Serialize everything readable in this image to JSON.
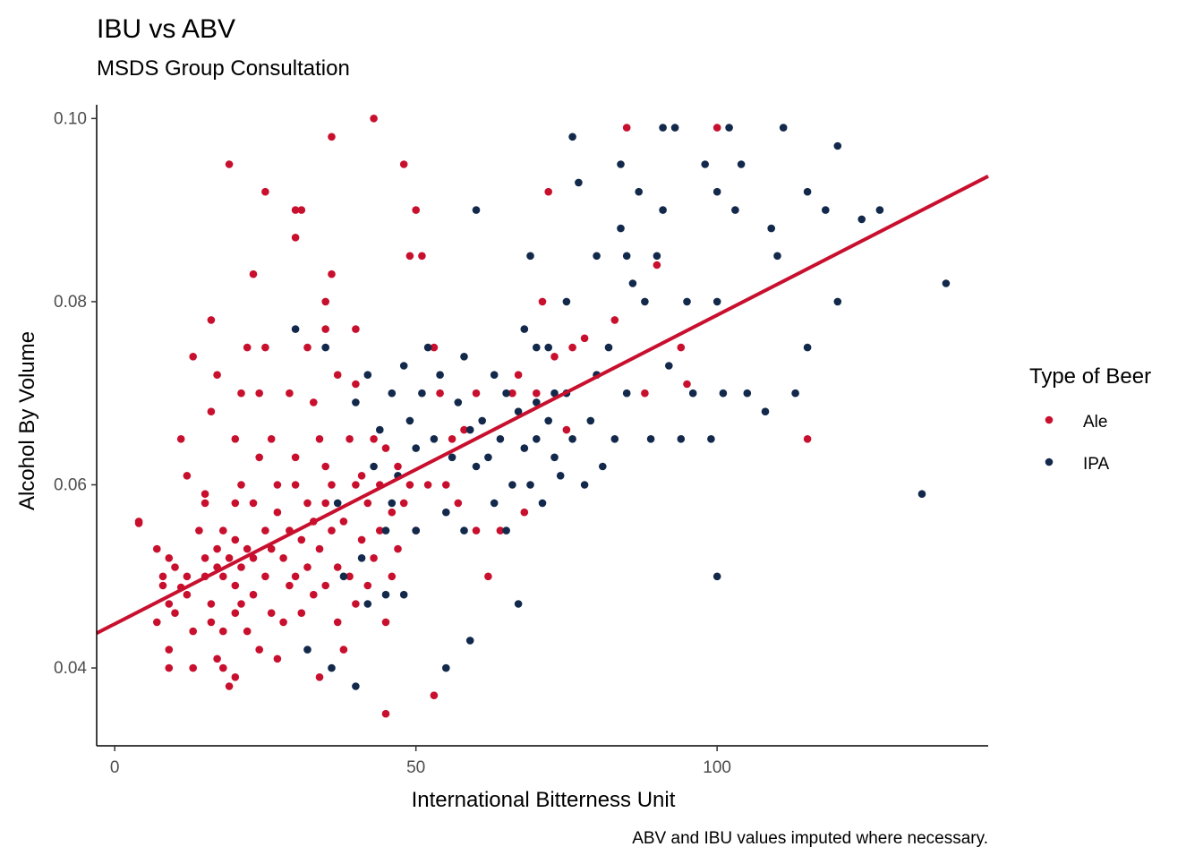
{
  "chart_data": {
    "type": "scatter",
    "title": "IBU vs ABV",
    "subtitle": "MSDS Group Consultation",
    "caption": "ABV and IBU values imputed where necessary.",
    "xlabel": "International Bitterness Unit",
    "ylabel": "Alcohol By Volume",
    "xlim": [
      -3,
      145
    ],
    "ylim": [
      0.0315,
      0.1015
    ],
    "x_ticks": [
      0,
      50,
      100
    ],
    "x_tick_labels": [
      "0",
      "50",
      "100"
    ],
    "y_ticks": [
      0.04,
      0.06,
      0.08,
      0.1
    ],
    "y_tick_labels": [
      "0.04",
      "0.06",
      "0.08",
      "0.10"
    ],
    "grid": false,
    "legend": {
      "title": "Type of Beer",
      "position": "right",
      "entries": [
        "Ale",
        "IPA"
      ]
    },
    "colors": {
      "Ale": "#c8102e",
      "IPA": "#13294b",
      "trend": "#c8102e"
    },
    "trend_line": {
      "type": "linear",
      "x": [
        -3,
        145
      ],
      "y": [
        0.0438,
        0.0937
      ]
    },
    "series": [
      {
        "name": "Ale",
        "points": [
          [
            4,
            0.0558
          ],
          [
            4,
            0.056
          ],
          [
            7,
            0.053
          ],
          [
            7,
            0.045
          ],
          [
            8,
            0.05
          ],
          [
            8,
            0.049
          ],
          [
            9,
            0.052
          ],
          [
            9,
            0.047
          ],
          [
            9,
            0.04
          ],
          [
            9,
            0.042
          ],
          [
            10,
            0.046
          ],
          [
            10,
            0.051
          ],
          [
            11,
            0.0488
          ],
          [
            11,
            0.065
          ],
          [
            12,
            0.061
          ],
          [
            12,
            0.05
          ],
          [
            12,
            0.048
          ],
          [
            13,
            0.044
          ],
          [
            13,
            0.074
          ],
          [
            13,
            0.04
          ],
          [
            14,
            0.055
          ],
          [
            15,
            0.059
          ],
          [
            15,
            0.058
          ],
          [
            15,
            0.052
          ],
          [
            15,
            0.05
          ],
          [
            16,
            0.047
          ],
          [
            16,
            0.045
          ],
          [
            16,
            0.068
          ],
          [
            16,
            0.078
          ],
          [
            17,
            0.072
          ],
          [
            17,
            0.051
          ],
          [
            17,
            0.053
          ],
          [
            17,
            0.041
          ],
          [
            18,
            0.055
          ],
          [
            18,
            0.05
          ],
          [
            18,
            0.044
          ],
          [
            18,
            0.04
          ],
          [
            19,
            0.038
          ],
          [
            19,
            0.095
          ],
          [
            19,
            0.052
          ],
          [
            20,
            0.039
          ],
          [
            20,
            0.046
          ],
          [
            20,
            0.049
          ],
          [
            20,
            0.054
          ],
          [
            20,
            0.058
          ],
          [
            20,
            0.065
          ],
          [
            21,
            0.051
          ],
          [
            21,
            0.07
          ],
          [
            21,
            0.06
          ],
          [
            21,
            0.047
          ],
          [
            22,
            0.053
          ],
          [
            22,
            0.075
          ],
          [
            22,
            0.044
          ],
          [
            23,
            0.083
          ],
          [
            23,
            0.058
          ],
          [
            23,
            0.048
          ],
          [
            23,
            0.052
          ],
          [
            24,
            0.07
          ],
          [
            24,
            0.063
          ],
          [
            24,
            0.042
          ],
          [
            25,
            0.092
          ],
          [
            25,
            0.075
          ],
          [
            25,
            0.055
          ],
          [
            25,
            0.05
          ],
          [
            26,
            0.065
          ],
          [
            26,
            0.053
          ],
          [
            26,
            0.046
          ],
          [
            27,
            0.06
          ],
          [
            27,
            0.057
          ],
          [
            27,
            0.041
          ],
          [
            28,
            0.052
          ],
          [
            28,
            0.045
          ],
          [
            29,
            0.055
          ],
          [
            29,
            0.07
          ],
          [
            29,
            0.049
          ],
          [
            30,
            0.087
          ],
          [
            30,
            0.09
          ],
          [
            30,
            0.063
          ],
          [
            30,
            0.05
          ],
          [
            30,
            0.06
          ],
          [
            31,
            0.09
          ],
          [
            31,
            0.054
          ],
          [
            31,
            0.046
          ],
          [
            32,
            0.075
          ],
          [
            32,
            0.058
          ],
          [
            32,
            0.051
          ],
          [
            33,
            0.069
          ],
          [
            33,
            0.056
          ],
          [
            33,
            0.048
          ],
          [
            34,
            0.065
          ],
          [
            34,
            0.053
          ],
          [
            34,
            0.039
          ],
          [
            35,
            0.08
          ],
          [
            35,
            0.077
          ],
          [
            35,
            0.062
          ],
          [
            35,
            0.058
          ],
          [
            35,
            0.049
          ],
          [
            36,
            0.098
          ],
          [
            36,
            0.083
          ],
          [
            36,
            0.055
          ],
          [
            36,
            0.06
          ],
          [
            37,
            0.072
          ],
          [
            37,
            0.051
          ],
          [
            37,
            0.045
          ],
          [
            38,
            0.056
          ],
          [
            38,
            0.042
          ],
          [
            39,
            0.065
          ],
          [
            39,
            0.05
          ],
          [
            40,
            0.077
          ],
          [
            40,
            0.071
          ],
          [
            40,
            0.06
          ],
          [
            40,
            0.047
          ],
          [
            41,
            0.061
          ],
          [
            41,
            0.054
          ],
          [
            42,
            0.058
          ],
          [
            42,
            0.049
          ],
          [
            43,
            0.1
          ],
          [
            43,
            0.065
          ],
          [
            43,
            0.052
          ],
          [
            44,
            0.06
          ],
          [
            44,
            0.055
          ],
          [
            45,
            0.045
          ],
          [
            45,
            0.035
          ],
          [
            45,
            0.064
          ],
          [
            46,
            0.057
          ],
          [
            46,
            0.05
          ],
          [
            47,
            0.062
          ],
          [
            47,
            0.053
          ],
          [
            48,
            0.095
          ],
          [
            48,
            0.058
          ],
          [
            49,
            0.085
          ],
          [
            49,
            0.06
          ],
          [
            50,
            0.09
          ],
          [
            50,
            0.055
          ],
          [
            51,
            0.085
          ],
          [
            52,
            0.06
          ],
          [
            53,
            0.075
          ],
          [
            53,
            0.037
          ],
          [
            54,
            0.07
          ],
          [
            55,
            0.06
          ],
          [
            56,
            0.065
          ],
          [
            57,
            0.058
          ],
          [
            58,
            0.066
          ],
          [
            60,
            0.07
          ],
          [
            60,
            0.055
          ],
          [
            62,
            0.05
          ],
          [
            64,
            0.055
          ],
          [
            66,
            0.07
          ],
          [
            67,
            0.072
          ],
          [
            68,
            0.057
          ],
          [
            70,
            0.07
          ],
          [
            71,
            0.08
          ],
          [
            72,
            0.092
          ],
          [
            73,
            0.074
          ],
          [
            75,
            0.066
          ],
          [
            76,
            0.075
          ],
          [
            78,
            0.076
          ],
          [
            80,
            0.072
          ],
          [
            83,
            0.078
          ],
          [
            85,
            0.099
          ],
          [
            88,
            0.07
          ],
          [
            90,
            0.084
          ],
          [
            94,
            0.075
          ],
          [
            95,
            0.071
          ],
          [
            100,
            0.099
          ],
          [
            115,
            0.065
          ]
        ]
      },
      {
        "name": "IPA",
        "points": [
          [
            30,
            0.077
          ],
          [
            32,
            0.042
          ],
          [
            35,
            0.075
          ],
          [
            36,
            0.04
          ],
          [
            37,
            0.058
          ],
          [
            38,
            0.05
          ],
          [
            40,
            0.069
          ],
          [
            40,
            0.038
          ],
          [
            41,
            0.052
          ],
          [
            42,
            0.072
          ],
          [
            42,
            0.047
          ],
          [
            43,
            0.062
          ],
          [
            44,
            0.066
          ],
          [
            45,
            0.055
          ],
          [
            45,
            0.048
          ],
          [
            46,
            0.07
          ],
          [
            46,
            0.058
          ],
          [
            47,
            0.061
          ],
          [
            48,
            0.073
          ],
          [
            48,
            0.048
          ],
          [
            49,
            0.067
          ],
          [
            50,
            0.064
          ],
          [
            50,
            0.055
          ],
          [
            51,
            0.07
          ],
          [
            52,
            0.075
          ],
          [
            53,
            0.065
          ],
          [
            54,
            0.072
          ],
          [
            55,
            0.057
          ],
          [
            55,
            0.04
          ],
          [
            56,
            0.063
          ],
          [
            57,
            0.069
          ],
          [
            58,
            0.074
          ],
          [
            58,
            0.055
          ],
          [
            59,
            0.066
          ],
          [
            59,
            0.043
          ],
          [
            60,
            0.09
          ],
          [
            60,
            0.062
          ],
          [
            61,
            0.067
          ],
          [
            62,
            0.063
          ],
          [
            63,
            0.058
          ],
          [
            63,
            0.072
          ],
          [
            64,
            0.065
          ],
          [
            65,
            0.07
          ],
          [
            65,
            0.055
          ],
          [
            66,
            0.06
          ],
          [
            67,
            0.068
          ],
          [
            67,
            0.047
          ],
          [
            68,
            0.077
          ],
          [
            68,
            0.064
          ],
          [
            69,
            0.085
          ],
          [
            69,
            0.06
          ],
          [
            70,
            0.075
          ],
          [
            70,
            0.069
          ],
          [
            70,
            0.065
          ],
          [
            71,
            0.058
          ],
          [
            72,
            0.075
          ],
          [
            72,
            0.067
          ],
          [
            73,
            0.07
          ],
          [
            73,
            0.063
          ],
          [
            74,
            0.061
          ],
          [
            75,
            0.08
          ],
          [
            75,
            0.07
          ],
          [
            76,
            0.098
          ],
          [
            76,
            0.065
          ],
          [
            77,
            0.093
          ],
          [
            78,
            0.06
          ],
          [
            79,
            0.067
          ],
          [
            80,
            0.085
          ],
          [
            80,
            0.072
          ],
          [
            81,
            0.062
          ],
          [
            82,
            0.075
          ],
          [
            83,
            0.065
          ],
          [
            84,
            0.095
          ],
          [
            84,
            0.088
          ],
          [
            85,
            0.085
          ],
          [
            85,
            0.07
          ],
          [
            86,
            0.082
          ],
          [
            87,
            0.092
          ],
          [
            88,
            0.08
          ],
          [
            89,
            0.065
          ],
          [
            90,
            0.085
          ],
          [
            91,
            0.099
          ],
          [
            91,
            0.09
          ],
          [
            92,
            0.073
          ],
          [
            93,
            0.099
          ],
          [
            94,
            0.065
          ],
          [
            95,
            0.08
          ],
          [
            96,
            0.07
          ],
          [
            98,
            0.095
          ],
          [
            99,
            0.065
          ],
          [
            100,
            0.092
          ],
          [
            100,
            0.08
          ],
          [
            100,
            0.05
          ],
          [
            101,
            0.07
          ],
          [
            102,
            0.099
          ],
          [
            103,
            0.09
          ],
          [
            104,
            0.095
          ],
          [
            105,
            0.07
          ],
          [
            108,
            0.068
          ],
          [
            109,
            0.088
          ],
          [
            110,
            0.085
          ],
          [
            111,
            0.099
          ],
          [
            113,
            0.07
          ],
          [
            115,
            0.092
          ],
          [
            115,
            0.075
          ],
          [
            118,
            0.09
          ],
          [
            120,
            0.097
          ],
          [
            120,
            0.08
          ],
          [
            124,
            0.089
          ],
          [
            127,
            0.09
          ],
          [
            134,
            0.059
          ],
          [
            138,
            0.082
          ]
        ]
      }
    ]
  }
}
